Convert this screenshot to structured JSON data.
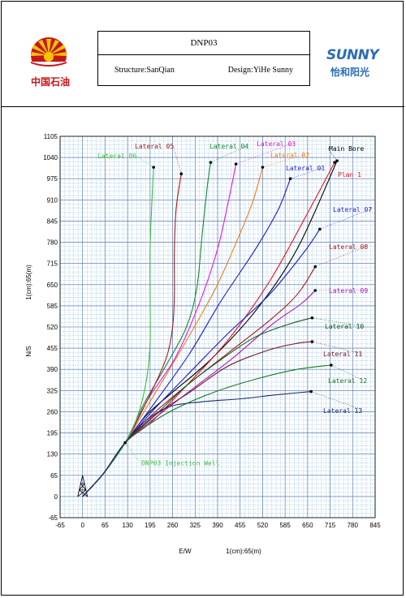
{
  "header": {
    "left_logo_text": "中国石油",
    "title": "DNP03",
    "structure": "Structure:SanQian",
    "design": "Design:YiHe Sunny",
    "right_logo_text": "SUNNY",
    "right_logo_subtext": "怡和阳光",
    "colors": {
      "petrochina_red": "#c8151b",
      "petrochina_yellow": "#f5c400",
      "sunny_blue": "#2c6db5",
      "sunny_orange": "#f39800"
    }
  },
  "chart_data": {
    "type": "line",
    "title": "",
    "xlabel": "E/W",
    "ylabel": "N/S",
    "xscale_note": "1(cm):65(m)",
    "yscale_note": "1(cm):65(m)",
    "xlim": [
      -65,
      845
    ],
    "ylim": [
      -65,
      1105
    ],
    "xticks": [
      -65,
      0,
      65,
      130,
      195,
      260,
      325,
      390,
      455,
      520,
      585,
      650,
      715,
      780,
      845
    ],
    "yticks": [
      -65,
      0,
      65,
      130,
      195,
      260,
      325,
      390,
      455,
      520,
      585,
      650,
      715,
      780,
      845,
      910,
      975,
      1040,
      1105
    ],
    "grid": true,
    "grid_color": "#3a8fd6",
    "wellhead_label": "DNP03 Injection Well",
    "wellhead_point": [
      123,
      165
    ],
    "series": [
      {
        "name": "Main Bore",
        "color": "#000000",
        "points": [
          [
            0,
            0
          ],
          [
            60,
            70
          ],
          [
            123,
            165
          ],
          [
            185,
            250
          ],
          [
            260,
            320
          ],
          [
            370,
            420
          ],
          [
            500,
            570
          ],
          [
            620,
            760
          ],
          [
            735,
            1030
          ]
        ],
        "end": [
          735,
          1030
        ]
      },
      {
        "name": "Plan 1",
        "color": "#e8141d",
        "points": [
          [
            0,
            0
          ],
          [
            60,
            70
          ],
          [
            123,
            165
          ],
          [
            200,
            230
          ],
          [
            300,
            340
          ],
          [
            420,
            480
          ],
          [
            540,
            660
          ],
          [
            640,
            850
          ],
          [
            728,
            1025
          ]
        ],
        "end": [
          728,
          1025
        ]
      },
      {
        "name": "Lateral 01",
        "color": "#1a1ad4",
        "points": [
          [
            0,
            0
          ],
          [
            60,
            70
          ],
          [
            123,
            165
          ],
          [
            210,
            290
          ],
          [
            310,
            440
          ],
          [
            400,
            600
          ],
          [
            500,
            760
          ],
          [
            565,
            880
          ],
          [
            600,
            975
          ]
        ],
        "end": [
          600,
          975
        ]
      },
      {
        "name": "Lateral 02",
        "color": "#f07c1a",
        "points": [
          [
            0,
            0
          ],
          [
            60,
            70
          ],
          [
            123,
            165
          ],
          [
            200,
            300
          ],
          [
            290,
            460
          ],
          [
            380,
            630
          ],
          [
            440,
            770
          ],
          [
            490,
            900
          ],
          [
            520,
            1010
          ]
        ],
        "end": [
          520,
          1010
        ]
      },
      {
        "name": "Lateral 03",
        "color": "#e616e0",
        "points": [
          [
            0,
            0
          ],
          [
            60,
            70
          ],
          [
            123,
            165
          ],
          [
            190,
            300
          ],
          [
            270,
            430
          ],
          [
            340,
            600
          ],
          [
            390,
            760
          ],
          [
            420,
            900
          ],
          [
            443,
            1020
          ]
        ],
        "end": [
          443,
          1020
        ]
      },
      {
        "name": "Lateral 04",
        "color": "#0f8c2b",
        "points": [
          [
            0,
            0
          ],
          [
            60,
            70
          ],
          [
            123,
            165
          ],
          [
            180,
            290
          ],
          [
            240,
            400
          ],
          [
            300,
            520
          ],
          [
            330,
            640
          ],
          [
            345,
            800
          ],
          [
            360,
            950
          ],
          [
            370,
            1025
          ]
        ],
        "end": [
          370,
          1025
        ]
      },
      {
        "name": "Lateral 05",
        "color": "#a81a1a",
        "points": [
          [
            0,
            0
          ],
          [
            60,
            70
          ],
          [
            123,
            165
          ],
          [
            180,
            280
          ],
          [
            240,
            420
          ],
          [
            260,
            520
          ],
          [
            265,
            620
          ],
          [
            265,
            750
          ],
          [
            270,
            880
          ],
          [
            285,
            990
          ]
        ],
        "end": [
          285,
          990
        ]
      },
      {
        "name": "Lateral 06",
        "color": "#3dbd3d",
        "points": [
          [
            0,
            0
          ],
          [
            60,
            70
          ],
          [
            123,
            165
          ],
          [
            160,
            250
          ],
          [
            185,
            360
          ],
          [
            195,
            470
          ],
          [
            195,
            600
          ],
          [
            195,
            760
          ],
          [
            200,
            900
          ],
          [
            205,
            1010
          ]
        ],
        "end": [
          205,
          1010
        ]
      },
      {
        "name": "Lateral 07",
        "color": "#1a1ad4",
        "points": [
          [
            0,
            0
          ],
          [
            60,
            70
          ],
          [
            123,
            165
          ],
          [
            200,
            260
          ],
          [
            300,
            370
          ],
          [
            420,
            500
          ],
          [
            540,
            620
          ],
          [
            640,
            750
          ],
          [
            685,
            820
          ]
        ],
        "end": [
          685,
          820
        ]
      },
      {
        "name": "Lateral 08",
        "color": "#a81a1a",
        "points": [
          [
            0,
            0
          ],
          [
            60,
            70
          ],
          [
            123,
            165
          ],
          [
            200,
            250
          ],
          [
            300,
            340
          ],
          [
            420,
            440
          ],
          [
            540,
            540
          ],
          [
            620,
            620
          ],
          [
            672,
            705
          ]
        ],
        "end": [
          672,
          705
        ]
      },
      {
        "name": "Lateral 09",
        "color": "#b01ab0",
        "points": [
          [
            0,
            0
          ],
          [
            60,
            70
          ],
          [
            123,
            165
          ],
          [
            220,
            250
          ],
          [
            330,
            340
          ],
          [
            440,
            430
          ],
          [
            550,
            530
          ],
          [
            630,
            590
          ],
          [
            672,
            632
          ]
        ],
        "end": [
          672,
          632
        ]
      },
      {
        "name": "Lateral 10",
        "color": "#0f5a1a",
        "points": [
          [
            0,
            0
          ],
          [
            60,
            70
          ],
          [
            123,
            165
          ],
          [
            210,
            250
          ],
          [
            300,
            340
          ],
          [
            400,
            420
          ],
          [
            500,
            490
          ],
          [
            600,
            530
          ],
          [
            663,
            548
          ]
        ],
        "end": [
          663,
          548
        ]
      },
      {
        "name": "Lateral 11",
        "color": "#6e1a2a",
        "points": [
          [
            0,
            0
          ],
          [
            60,
            70
          ],
          [
            123,
            165
          ],
          [
            210,
            250
          ],
          [
            310,
            320
          ],
          [
            420,
            400
          ],
          [
            540,
            450
          ],
          [
            620,
            470
          ],
          [
            663,
            475
          ]
        ],
        "end": [
          663,
          475
        ]
      },
      {
        "name": "Lateral 12",
        "color": "#157a21",
        "points": [
          [
            0,
            0
          ],
          [
            60,
            70
          ],
          [
            123,
            165
          ],
          [
            190,
            220
          ],
          [
            270,
            270
          ],
          [
            380,
            320
          ],
          [
            500,
            360
          ],
          [
            620,
            390
          ],
          [
            718,
            403
          ]
        ],
        "end": [
          718,
          403
        ]
      },
      {
        "name": "Lateral 13",
        "color": "#1b2a6b",
        "points": [
          [
            0,
            0
          ],
          [
            60,
            70
          ],
          [
            123,
            165
          ],
          [
            180,
            230
          ],
          [
            250,
            275
          ],
          [
            340,
            290
          ],
          [
            460,
            300
          ],
          [
            560,
            312
          ],
          [
            660,
            322
          ]
        ],
        "end": [
          660,
          322
        ]
      }
    ]
  }
}
